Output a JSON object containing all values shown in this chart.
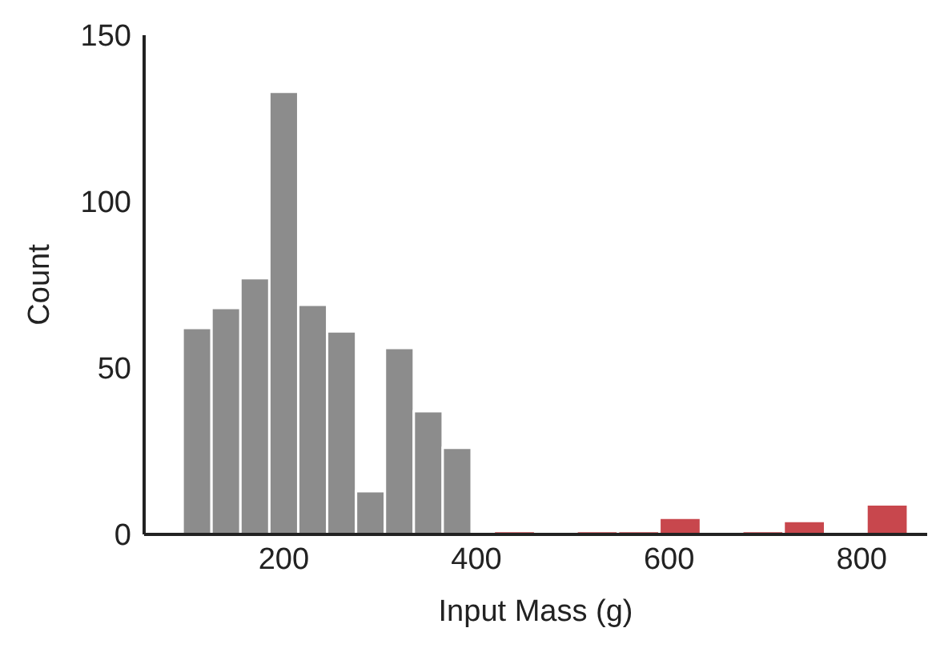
{
  "chart_data": {
    "type": "histogram",
    "xlabel": "Input Mass (g)",
    "ylabel": "Count",
    "xlim": [
      55,
      868
    ],
    "xticks": [
      200,
      400,
      600,
      800
    ],
    "ylim": [
      0,
      150
    ],
    "yticks": [
      0,
      50,
      100,
      150
    ],
    "grid": false,
    "bins": [
      95,
      125,
      155,
      185,
      215,
      245,
      275,
      305,
      335,
      365,
      395,
      418,
      461,
      504,
      547,
      590,
      633,
      676,
      719,
      762,
      805,
      848
    ],
    "values": [
      62,
      68,
      77,
      133,
      69,
      61,
      13,
      56,
      37,
      26,
      0,
      1,
      0,
      1,
      1,
      5,
      0,
      1,
      4,
      0,
      9
    ],
    "colors": [
      "#8c8c8c",
      "#8c8c8c",
      "#8c8c8c",
      "#8c8c8c",
      "#8c8c8c",
      "#8c8c8c",
      "#8c8c8c",
      "#8c8c8c",
      "#8c8c8c",
      "#8c8c8c",
      "#8c8c8c",
      "#c8474d",
      "#c8474d",
      "#c8474d",
      "#c8474d",
      "#c8474d",
      "#c8474d",
      "#c8474d",
      "#c8474d",
      "#c8474d",
      "#c8474d"
    ]
  }
}
